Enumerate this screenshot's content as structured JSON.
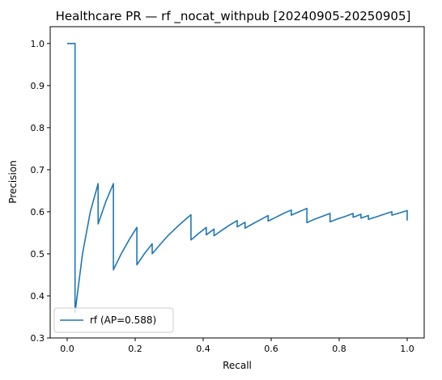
{
  "chart_data": {
    "type": "line",
    "title": "Healthcare PR — rf _nocat_withpub [20240905-20250905]",
    "xlabel": "Recall",
    "ylabel": "Precision",
    "xlim": [
      -0.05,
      1.05
    ],
    "ylim": [
      0.3,
      1.04
    ],
    "xticks": [
      "0.0",
      "0.2",
      "0.4",
      "0.6",
      "0.8",
      "1.0"
    ],
    "yticks": [
      "0.3",
      "0.4",
      "0.5",
      "0.6",
      "0.7",
      "0.8",
      "0.9",
      "1.0"
    ],
    "grid": false,
    "legend_position": "lower left",
    "series": [
      {
        "name": "rf (AP=0.588)",
        "color": "#1f77b4",
        "points": [
          [
            0.0,
            1.0
          ],
          [
            0.023,
            1.0
          ],
          [
            0.023,
            0.36
          ],
          [
            0.045,
            0.5
          ],
          [
            0.068,
            0.6
          ],
          [
            0.091,
            0.667
          ],
          [
            0.091,
            0.571
          ],
          [
            0.114,
            0.625
          ],
          [
            0.136,
            0.667
          ],
          [
            0.136,
            0.462
          ],
          [
            0.159,
            0.5
          ],
          [
            0.182,
            0.533
          ],
          [
            0.205,
            0.563
          ],
          [
            0.205,
            0.474
          ],
          [
            0.227,
            0.5
          ],
          [
            0.25,
            0.524
          ],
          [
            0.25,
            0.5
          ],
          [
            0.273,
            0.522
          ],
          [
            0.295,
            0.542
          ],
          [
            0.318,
            0.56
          ],
          [
            0.341,
            0.577
          ],
          [
            0.364,
            0.593
          ],
          [
            0.364,
            0.533
          ],
          [
            0.386,
            0.548
          ],
          [
            0.409,
            0.563
          ],
          [
            0.409,
            0.545
          ],
          [
            0.432,
            0.559
          ],
          [
            0.432,
            0.543
          ],
          [
            0.455,
            0.556
          ],
          [
            0.477,
            0.568
          ],
          [
            0.5,
            0.579
          ],
          [
            0.5,
            0.564
          ],
          [
            0.523,
            0.575
          ],
          [
            0.523,
            0.561
          ],
          [
            0.545,
            0.571
          ],
          [
            0.568,
            0.581
          ],
          [
            0.591,
            0.591
          ],
          [
            0.591,
            0.578
          ],
          [
            0.614,
            0.587
          ],
          [
            0.636,
            0.596
          ],
          [
            0.659,
            0.604
          ],
          [
            0.659,
            0.592
          ],
          [
            0.682,
            0.6
          ],
          [
            0.705,
            0.608
          ],
          [
            0.705,
            0.574
          ],
          [
            0.727,
            0.582
          ],
          [
            0.75,
            0.589
          ],
          [
            0.773,
            0.596
          ],
          [
            0.773,
            0.576
          ],
          [
            0.795,
            0.583
          ],
          [
            0.818,
            0.589
          ],
          [
            0.841,
            0.596
          ],
          [
            0.841,
            0.587
          ],
          [
            0.864,
            0.594
          ],
          [
            0.864,
            0.585
          ],
          [
            0.886,
            0.591
          ],
          [
            0.886,
            0.582
          ],
          [
            0.909,
            0.588
          ],
          [
            0.932,
            0.594
          ],
          [
            0.955,
            0.6
          ],
          [
            0.955,
            0.592
          ],
          [
            0.977,
            0.597
          ],
          [
            1.0,
            0.603
          ],
          [
            1.0,
            0.579
          ]
        ]
      }
    ]
  }
}
